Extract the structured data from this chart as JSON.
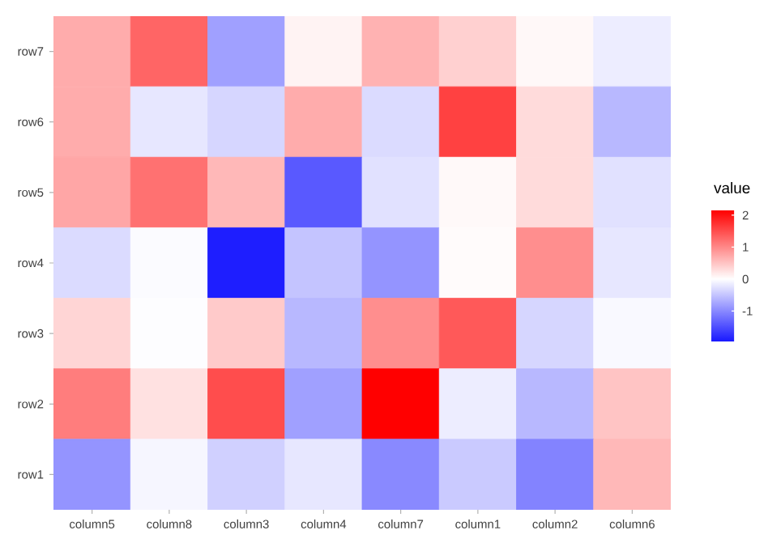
{
  "chart_data": {
    "type": "heatmap",
    "categories": [
      "column5",
      "column8",
      "column3",
      "column4",
      "column7",
      "column1",
      "column2",
      "column6"
    ],
    "y_categories": [
      "row7",
      "row6",
      "row5",
      "row4",
      "row3",
      "row2",
      "row1"
    ],
    "cells": [
      [
        0.7,
        1.3,
        -0.8,
        0.1,
        0.65,
        0.4,
        0.06,
        -0.15
      ],
      [
        0.7,
        -0.2,
        -0.35,
        0.7,
        -0.3,
        1.6,
        0.3,
        -0.6
      ],
      [
        0.75,
        1.2,
        0.6,
        -1.4,
        -0.25,
        0.05,
        0.3,
        -0.25
      ],
      [
        -0.3,
        -0.03,
        -1.9,
        -0.5,
        -0.9,
        0.03,
        0.95,
        -0.2
      ],
      [
        0.35,
        -0.02,
        0.45,
        -0.6,
        0.95,
        1.4,
        -0.35,
        -0.05
      ],
      [
        1.1,
        0.25,
        1.5,
        -0.8,
        2.15,
        -0.15,
        -0.6,
        0.5
      ],
      [
        -0.9,
        -0.08,
        -0.4,
        -0.2,
        -1.0,
        -0.45,
        -1.05,
        0.6
      ]
    ],
    "clim": [
      -1.95,
      2.15
    ],
    "clabel": "value",
    "cticks": [
      -1,
      0,
      1,
      2
    ]
  }
}
